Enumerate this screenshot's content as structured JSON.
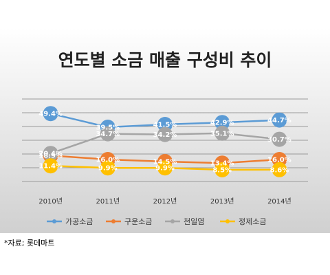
{
  "source_note": "*자료; 롯데마트",
  "colors": {
    "background_top": "#ffffff",
    "background_bottom": "#d0d0d0",
    "gridline": "#9a9a9a"
  },
  "chart_data": {
    "type": "line",
    "title": "연도별 소금 매출 구성비 추이",
    "categories": [
      "2010년",
      "2011년",
      "2012년",
      "2013년",
      "2014년"
    ],
    "ylim": [
      0,
      60
    ],
    "grid": true,
    "legend_position": "bottom",
    "series": [
      {
        "name": "가공소금",
        "color": "#5b9bd5",
        "values": [
          49.4,
          39.5,
          41.5,
          42.9,
          44.7
        ],
        "labels": [
          "49.4%",
          "39.5%",
          "41.5%",
          "42.9%",
          "44.7%"
        ]
      },
      {
        "name": "구운소금",
        "color": "#ed7d31",
        "values": [
          18.9,
          16.0,
          14.5,
          13.4,
          16.0
        ],
        "labels": [
          "18.9%",
          "16.0%",
          "14.5%",
          "13.4%",
          "16.0%"
        ]
      },
      {
        "name": "천일염",
        "color": "#a5a5a5",
        "values": [
          20.4,
          34.7,
          34.2,
          35.1,
          30.7
        ],
        "labels": [
          "20.4%",
          "34.7%",
          "34.2%",
          "35.1%",
          "30.7%"
        ]
      },
      {
        "name": "정제소금",
        "color": "#ffc000",
        "values": [
          11.4,
          9.9,
          9.9,
          8.5,
          8.6
        ],
        "labels": [
          "11.4%",
          "9.9%",
          "9.9%",
          "8.5%",
          "8.6%"
        ]
      }
    ]
  }
}
